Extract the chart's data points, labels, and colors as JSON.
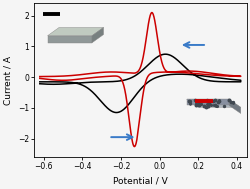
{
  "xlabel": "Potential / V",
  "ylabel": "Current / A",
  "xlim": [
    -0.65,
    0.45
  ],
  "ylim": [
    -2.6,
    2.4
  ],
  "xticks": [
    -0.6,
    -0.4,
    -0.2,
    0.0,
    0.2,
    0.4
  ],
  "yticks": [
    -2,
    -1,
    0,
    1,
    2
  ],
  "black_line_color": "#000000",
  "red_line_color": "#cc0000",
  "background_color": "#f5f5f5",
  "arrow_color": "#3a7bc8"
}
